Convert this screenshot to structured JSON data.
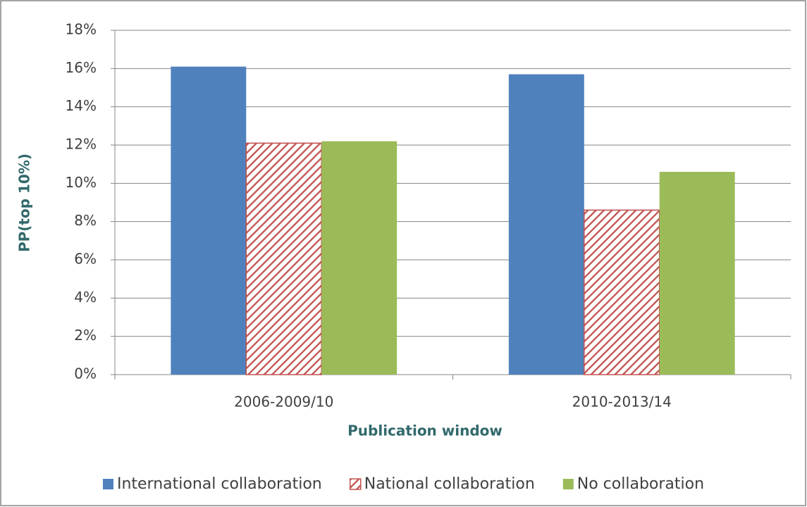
{
  "chart_data": {
    "type": "bar",
    "x_label": "Publication window",
    "y_label": "PP(top 10%)",
    "categories": [
      "2006-2009/10",
      "2010-2013/14"
    ],
    "series": [
      {
        "name": "International collaboration",
        "color": "#4f81bd",
        "values": [
          16.1,
          15.7
        ]
      },
      {
        "name": "National collaboration",
        "color": "#c0504d",
        "hatch": true,
        "values": [
          12.1,
          8.6
        ]
      },
      {
        "name": "No collaboration",
        "color": "#9bbb59",
        "values": [
          12.2,
          10.6
        ]
      }
    ],
    "ylim": [
      0,
      18
    ],
    "yticks": [
      {
        "value": 0,
        "label": "0%"
      },
      {
        "value": 2,
        "label": "2%"
      },
      {
        "value": 4,
        "label": "4%"
      },
      {
        "value": 6,
        "label": "6%"
      },
      {
        "value": 8,
        "label": "8%"
      },
      {
        "value": 10,
        "label": "10%"
      },
      {
        "value": 12,
        "label": "12%"
      },
      {
        "value": 14,
        "label": "14%"
      },
      {
        "value": 16,
        "label": "16%"
      },
      {
        "value": 18,
        "label": "18%"
      }
    ],
    "grid": true,
    "legend": "bottom"
  }
}
